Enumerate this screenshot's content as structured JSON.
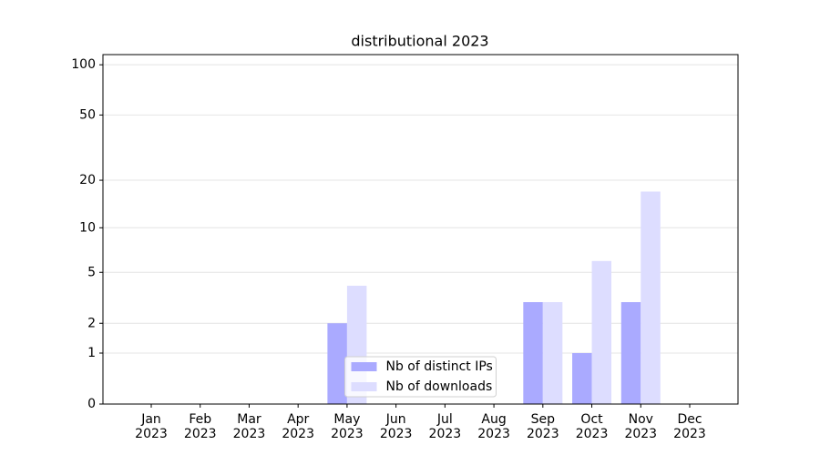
{
  "chart_data": {
    "type": "bar",
    "title": "distributional 2023",
    "categories": [
      "Jan 2023",
      "Feb 2023",
      "Mar 2023",
      "Apr 2023",
      "May 2023",
      "Jun 2023",
      "Jul 2023",
      "Aug 2023",
      "Sep 2023",
      "Oct 2023",
      "Nov 2023",
      "Dec 2023"
    ],
    "series": [
      {
        "name": "Nb of distinct IPs",
        "color": "#aaaaff",
        "values": [
          0,
          0,
          0,
          0,
          2,
          0,
          0,
          0,
          3,
          1,
          3,
          0
        ]
      },
      {
        "name": "Nb of downloads",
        "color": "#ddddff",
        "values": [
          0,
          0,
          0,
          0,
          4,
          0,
          0,
          0,
          3,
          6,
          17,
          0
        ]
      }
    ],
    "yscale": "log1p",
    "ylim": [
      0,
      115
    ],
    "yticks": [
      0,
      1,
      2,
      5,
      10,
      20,
      50,
      100
    ],
    "grid": true,
    "legend": "lower center"
  }
}
